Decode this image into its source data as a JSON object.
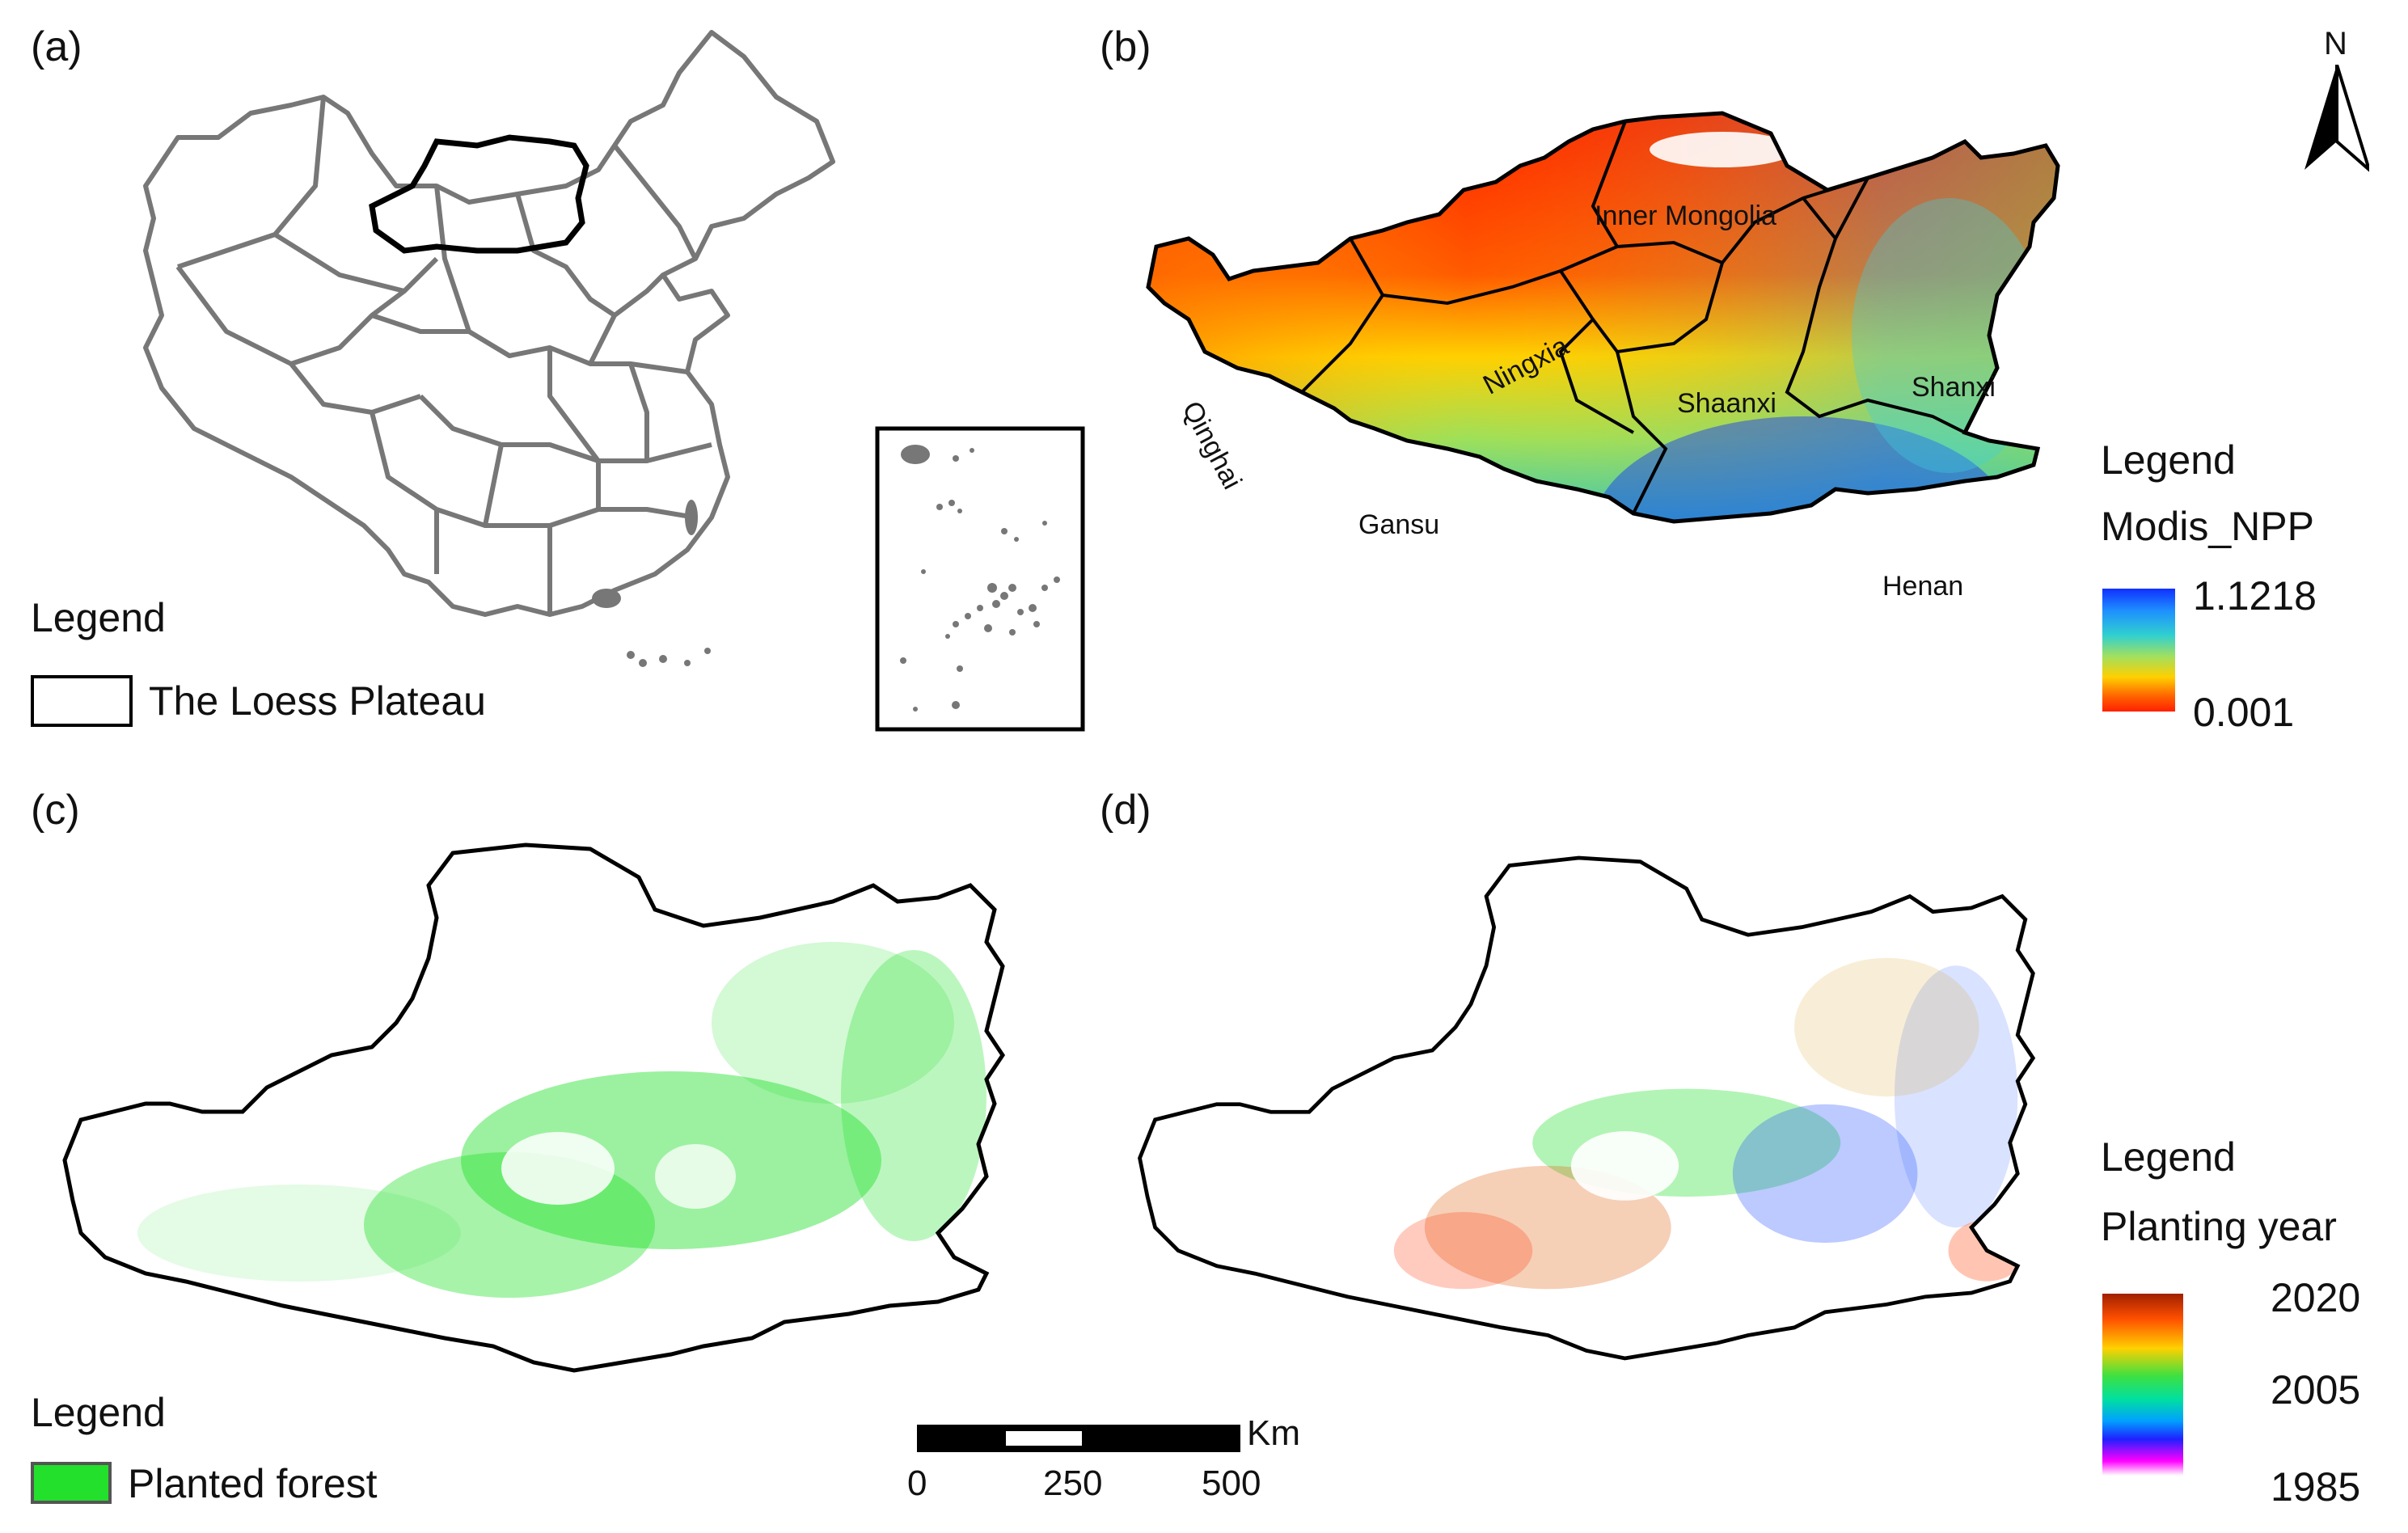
{
  "panels": {
    "a": {
      "label": "(a)",
      "legend_title": "Legend",
      "legend_item": "The Loess Plateau"
    },
    "b": {
      "label": "(b)",
      "north_label": "N",
      "provinces": [
        "Inner Mongolia",
        "Ningxia",
        "Shaanxi",
        "Shanxi",
        "Qinghai",
        "Gansu",
        "Henan"
      ],
      "legend_title": "Legend",
      "legend_field": "Modis_NPP",
      "legend_max": "1.1218",
      "legend_min": "0.001"
    },
    "c": {
      "label": "(c)",
      "legend_title": "Legend",
      "legend_item": "Planted forest",
      "legend_color": "#22e02b"
    },
    "d": {
      "label": "(d)",
      "legend_title": "Legend",
      "legend_field": "Planting year",
      "legend_ticks": [
        "2020",
        "2005",
        "1985"
      ]
    }
  },
  "scale_bar": {
    "unit": "Km",
    "ticks": [
      "0",
      "250",
      "500"
    ]
  },
  "colors": {
    "boundary_gray": "#777777",
    "boundary_black": "#000000",
    "npp_low": "#ff2000",
    "npp_high": "#1030ff",
    "forest_green": "#22e02b"
  }
}
